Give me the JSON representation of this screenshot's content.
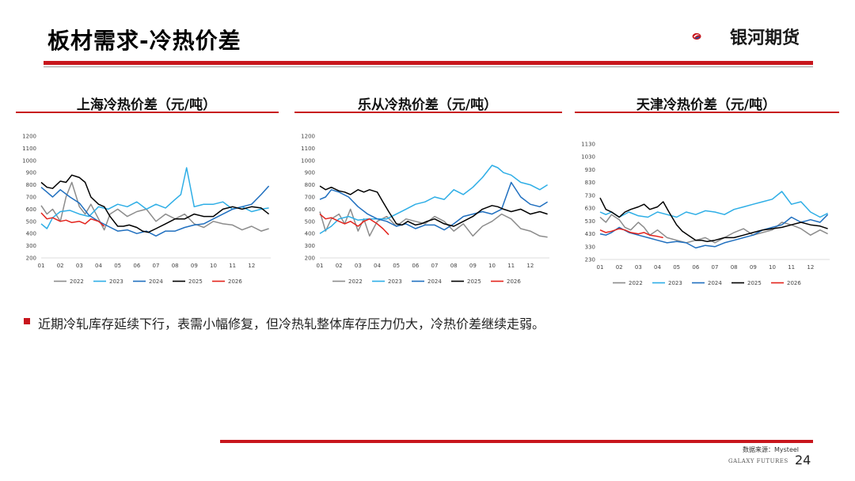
{
  "header": {
    "title": "板材需求-冷热价差",
    "brand": "银河期货"
  },
  "colors": {
    "accent": "#c8161d",
    "s2022": "#8c8c8c",
    "s2023": "#2eaee6",
    "s2024": "#1f6fbf",
    "s2025": "#000000",
    "s2026": "#e3231c"
  },
  "chart_data": [
    {
      "type": "line",
      "title": "上海冷热价差（元/吨）",
      "x_ticks": [
        "01",
        "02",
        "03",
        "04",
        "05",
        "06",
        "07",
        "08",
        "09",
        "10",
        "11",
        "12"
      ],
      "y_ticks": [
        200,
        300,
        400,
        500,
        600,
        700,
        800,
        900,
        1000,
        1100,
        1200
      ],
      "ylim": [
        200,
        1200
      ],
      "xlim": [
        1,
        13
      ],
      "series": [
        {
          "name": "2022",
          "x": [
            1,
            1.3,
            1.6,
            2,
            2.3,
            2.6,
            3,
            3.3,
            3.6,
            4,
            4.3,
            4.6,
            5,
            5.5,
            6,
            6.5,
            7,
            7.5,
            8,
            8.5,
            9,
            9.5,
            10,
            10.5,
            11,
            11.5,
            12,
            12.5,
            12.9
          ],
          "y": [
            630,
            560,
            600,
            500,
            700,
            820,
            620,
            560,
            640,
            520,
            430,
            560,
            600,
            540,
            580,
            600,
            500,
            560,
            520,
            560,
            480,
            450,
            500,
            480,
            470,
            430,
            460,
            420,
            440
          ]
        },
        {
          "name": "2023",
          "x": [
            1,
            1.3,
            1.6,
            2,
            2.5,
            3,
            3.5,
            4,
            4.5,
            5,
            5.5,
            6,
            6.5,
            7,
            7.5,
            8,
            8.3,
            8.6,
            9,
            9.5,
            10,
            10.5,
            11,
            11.5,
            12,
            12.5,
            12.9
          ],
          "y": [
            480,
            440,
            530,
            580,
            590,
            560,
            540,
            620,
            600,
            640,
            620,
            660,
            600,
            640,
            610,
            680,
            720,
            940,
            620,
            640,
            640,
            660,
            600,
            620,
            580,
            600,
            610
          ]
        },
        {
          "name": "2024",
          "x": [
            1,
            1.3,
            1.6,
            2,
            2.5,
            3,
            3.5,
            4,
            4.5,
            5,
            5.5,
            6,
            6.5,
            7,
            7.5,
            8,
            8.5,
            9,
            9.5,
            10,
            10.5,
            11,
            11.5,
            12,
            12.5,
            12.9
          ],
          "y": [
            780,
            740,
            700,
            760,
            700,
            650,
            550,
            500,
            460,
            420,
            430,
            400,
            420,
            380,
            420,
            420,
            450,
            470,
            480,
            520,
            560,
            600,
            620,
            640,
            720,
            790
          ]
        },
        {
          "name": "2025",
          "x": [
            1,
            1.3,
            1.6,
            2,
            2.3,
            2.6,
            3,
            3.3,
            3.6,
            4,
            4.3,
            4.6,
            5,
            5.3,
            5.6,
            6,
            6.3,
            6.6,
            7,
            7.5,
            8,
            8.5,
            9,
            9.5,
            10,
            10.5,
            11,
            11.5,
            12,
            12.5,
            12.9
          ],
          "y": [
            820,
            780,
            770,
            830,
            820,
            880,
            860,
            820,
            700,
            640,
            620,
            540,
            460,
            460,
            470,
            450,
            420,
            410,
            440,
            480,
            520,
            520,
            560,
            540,
            540,
            600,
            620,
            600,
            620,
            610,
            560
          ]
        },
        {
          "name": "2026",
          "x": [
            1,
            1.3,
            1.6,
            2,
            2.3,
            2.6,
            3,
            3.3,
            3.6,
            4,
            4.3
          ],
          "y": [
            570,
            520,
            530,
            500,
            510,
            490,
            500,
            480,
            520,
            500,
            460
          ]
        }
      ]
    },
    {
      "type": "line",
      "title": "乐从冷热价差（元/吨）",
      "x_ticks": [
        "01",
        "02",
        "03",
        "04",
        "05",
        "06",
        "07",
        "08",
        "09",
        "10",
        "11",
        "12"
      ],
      "y_ticks": [
        200,
        300,
        400,
        500,
        600,
        700,
        800,
        900,
        1000,
        1100,
        1200
      ],
      "ylim": [
        200,
        1200
      ],
      "xlim": [
        1,
        13
      ],
      "series": [
        {
          "name": "2022",
          "x": [
            1,
            1.3,
            1.6,
            2,
            2.3,
            2.6,
            3,
            3.3,
            3.6,
            4,
            4.5,
            5,
            5.5,
            6,
            6.5,
            7,
            7.5,
            8,
            8.5,
            9,
            9.5,
            10,
            10.5,
            11,
            11.5,
            12,
            12.5,
            12.9
          ],
          "y": [
            580,
            420,
            520,
            560,
            480,
            600,
            420,
            520,
            380,
            500,
            540,
            460,
            520,
            500,
            480,
            540,
            500,
            420,
            480,
            380,
            460,
            500,
            560,
            520,
            440,
            420,
            380,
            370
          ]
        },
        {
          "name": "2023",
          "x": [
            1,
            1.3,
            1.6,
            2,
            2.5,
            3,
            3.5,
            4,
            4.5,
            5,
            5.5,
            6,
            6.5,
            7,
            7.5,
            8,
            8.5,
            9,
            9.5,
            10,
            10.3,
            10.6,
            11,
            11.5,
            12,
            12.5,
            12.9
          ],
          "y": [
            400,
            430,
            460,
            520,
            540,
            510,
            520,
            520,
            520,
            560,
            600,
            640,
            660,
            700,
            680,
            760,
            720,
            780,
            860,
            960,
            940,
            900,
            880,
            820,
            800,
            760,
            800
          ]
        },
        {
          "name": "2024",
          "x": [
            1,
            1.3,
            1.6,
            2,
            2.5,
            3,
            3.5,
            4,
            4.5,
            5,
            5.5,
            6,
            6.5,
            7,
            7.5,
            8,
            8.5,
            9,
            9.5,
            10,
            10.5,
            11,
            11.5,
            12,
            12.5,
            12.9
          ],
          "y": [
            680,
            700,
            760,
            740,
            700,
            620,
            560,
            520,
            500,
            460,
            480,
            440,
            470,
            470,
            430,
            480,
            540,
            560,
            580,
            560,
            600,
            820,
            700,
            640,
            620,
            660
          ]
        },
        {
          "name": "2025",
          "x": [
            1,
            1.3,
            1.6,
            2,
            2.3,
            2.6,
            3,
            3.3,
            3.6,
            4,
            4.3,
            4.6,
            5,
            5.3,
            5.6,
            6,
            6.3,
            6.6,
            7,
            7.5,
            8,
            8.5,
            9,
            9.5,
            10,
            10.3,
            10.6,
            11,
            11.5,
            12,
            12.5,
            12.9
          ],
          "y": [
            790,
            760,
            780,
            750,
            740,
            720,
            760,
            740,
            760,
            740,
            660,
            580,
            480,
            470,
            500,
            470,
            480,
            500,
            520,
            480,
            460,
            500,
            540,
            600,
            630,
            620,
            600,
            580,
            600,
            560,
            580,
            560
          ]
        },
        {
          "name": "2026",
          "x": [
            1,
            1.3,
            1.6,
            2,
            2.3,
            2.6,
            3,
            3.3,
            3.6,
            4,
            4.3,
            4.6
          ],
          "y": [
            560,
            520,
            530,
            500,
            480,
            500,
            460,
            500,
            520,
            480,
            440,
            390
          ]
        }
      ]
    },
    {
      "type": "line",
      "title": "天津冷热价差（元/吨）",
      "x_ticks": [
        "01",
        "02",
        "03",
        "04",
        "05",
        "06",
        "07",
        "08",
        "09",
        "10",
        "11",
        "12"
      ],
      "y_ticks": [
        230,
        330,
        430,
        530,
        630,
        730,
        830,
        930,
        1030,
        1130
      ],
      "ylim": [
        230,
        1130
      ],
      "xlim": [
        1,
        13
      ],
      "series": [
        {
          "name": "2022",
          "x": [
            1,
            1.3,
            1.6,
            2,
            2.3,
            2.6,
            3,
            3.3,
            3.6,
            4,
            4.5,
            5,
            5.5,
            6,
            6.5,
            7,
            7.5,
            8,
            8.5,
            9,
            9.5,
            10,
            10.5,
            11,
            11.5,
            12,
            12.5,
            12.9
          ],
          "y": [
            560,
            520,
            580,
            540,
            480,
            460,
            520,
            480,
            420,
            460,
            400,
            380,
            360,
            380,
            400,
            360,
            400,
            440,
            470,
            420,
            440,
            460,
            520,
            500,
            470,
            420,
            460,
            430
          ]
        },
        {
          "name": "2023",
          "x": [
            1,
            1.3,
            1.6,
            2,
            2.5,
            3,
            3.5,
            4,
            4.5,
            5,
            5.5,
            6,
            6.5,
            7,
            7.5,
            8,
            8.5,
            9,
            9.5,
            10,
            10.5,
            11,
            11.5,
            12,
            12.5,
            12.9
          ],
          "y": [
            600,
            580,
            600,
            560,
            600,
            570,
            560,
            600,
            580,
            560,
            600,
            580,
            610,
            600,
            580,
            620,
            640,
            660,
            680,
            700,
            760,
            660,
            680,
            600,
            560,
            590
          ]
        },
        {
          "name": "2024",
          "x": [
            1,
            1.3,
            1.6,
            2,
            2.5,
            3,
            3.5,
            4,
            4.5,
            5,
            5.5,
            6,
            6.5,
            7,
            7.5,
            8,
            8.5,
            9,
            9.5,
            10,
            10.5,
            11,
            11.5,
            12,
            12.5,
            12.9
          ],
          "y": [
            430,
            420,
            440,
            480,
            440,
            420,
            400,
            380,
            360,
            370,
            360,
            320,
            340,
            330,
            360,
            380,
            400,
            420,
            460,
            480,
            500,
            560,
            520,
            540,
            520,
            580
          ]
        },
        {
          "name": "2025",
          "x": [
            1,
            1.3,
            1.6,
            2,
            2.3,
            2.6,
            3,
            3.3,
            3.6,
            4,
            4.3,
            4.6,
            5,
            5.3,
            5.6,
            6,
            6.3,
            6.6,
            7,
            7.5,
            8,
            8.5,
            9,
            9.5,
            10,
            10.5,
            11,
            11.5,
            12,
            12.5,
            12.9
          ],
          "y": [
            710,
            620,
            600,
            560,
            600,
            620,
            640,
            660,
            620,
            640,
            680,
            600,
            500,
            450,
            420,
            380,
            380,
            370,
            380,
            400,
            400,
            420,
            440,
            460,
            470,
            480,
            500,
            520,
            500,
            490,
            470
          ]
        },
        {
          "name": "2026",
          "x": [
            1,
            1.3,
            1.6,
            2,
            2.3,
            2.6,
            3,
            3.3,
            3.6,
            4,
            4.3
          ],
          "y": [
            460,
            440,
            450,
            470,
            460,
            440,
            430,
            440,
            420,
            410,
            400
          ]
        }
      ]
    }
  ],
  "note": "近期冷轧库存延续下行，表需小幅修复，但冷热轧整体库存压力仍大，冷热价差继续走弱。",
  "footer": {
    "source": "数据来源：Mysteel",
    "galaxy": "GALAXY FUTURES",
    "page": "24"
  }
}
